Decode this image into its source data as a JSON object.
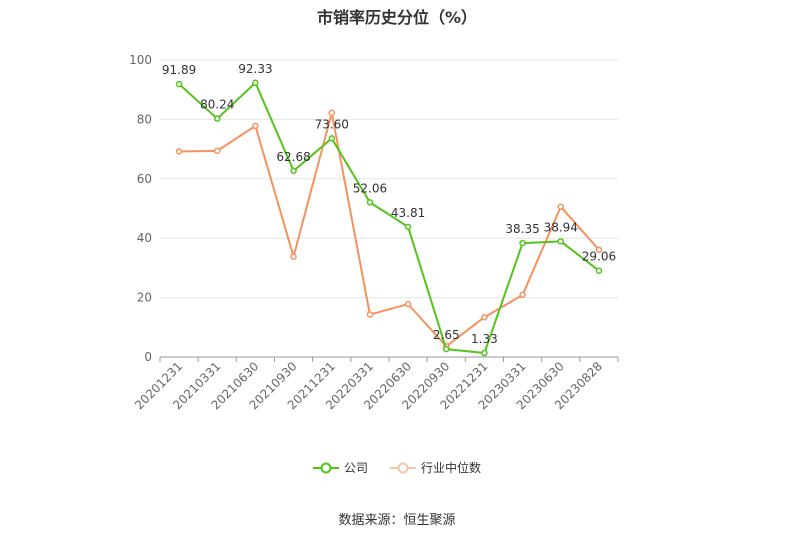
{
  "title": "市销率历史分位（%）",
  "source": "数据来源：恒生聚源",
  "colors": {
    "company": "#52c41a",
    "industry": "#f4925e",
    "grid": "#e6e6e6",
    "axis": "#999999"
  },
  "chart_data": {
    "type": "line",
    "title": "市销率历史分位（%）",
    "categories": [
      "20201231",
      "20210331",
      "20210630",
      "20210930",
      "20211231",
      "20220331",
      "20220630",
      "20220930",
      "20221231",
      "20230331",
      "20230630",
      "20230828"
    ],
    "ylim": [
      0,
      100
    ],
    "yticks": [
      0,
      20,
      40,
      60,
      80,
      100
    ],
    "grid": true,
    "legend": "bottom-center",
    "series": [
      {
        "name": "公司",
        "values": [
          91.89,
          80.24,
          92.33,
          62.68,
          73.6,
          52.06,
          43.81,
          2.65,
          1.33,
          38.35,
          38.94,
          29.06
        ],
        "labels": [
          "91.89",
          "80.24",
          "92.33",
          "62.68",
          "73.60",
          "52.06",
          "43.81",
          "2.65",
          "1.33",
          "38.35",
          "38.94",
          "29.06"
        ]
      },
      {
        "name": "行业中位数",
        "values": [
          69.2,
          69.4,
          77.8,
          33.8,
          82.2,
          14.3,
          17.8,
          3.6,
          13.4,
          20.9,
          50.6,
          36.1
        ]
      }
    ]
  }
}
